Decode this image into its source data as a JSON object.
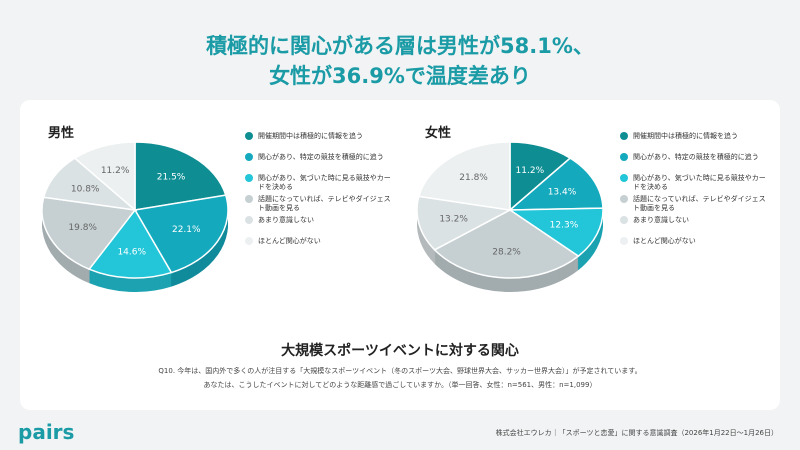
{
  "title_lines": [
    "積極的に関心がある層は男性が58.1%、",
    "女性が36.9%で温度差あり"
  ],
  "chart_data": [
    {
      "type": "pie",
      "title": "男性",
      "categories": [
        "開催期間中は積極的に情報を追う",
        "関心があり、特定の競技を積極的に追う",
        "関心があり、気づいた時に見る競技やカードを決める",
        "話題になっていれば、テレビやダイジェスト動画を見る",
        "あまり意識しない",
        "ほとんど関心がない"
      ],
      "values": [
        21.5,
        22.1,
        14.6,
        19.8,
        10.8,
        11.2
      ],
      "value_labels": [
        "21.5%",
        "22.1%",
        "14.6%",
        "19.8%",
        "10.8%",
        "11.2%"
      ],
      "colors": [
        "#0e8e93",
        "#14a9bd",
        "#22c6d8",
        "#c6d0d3",
        "#dbe2e4",
        "#ecf0f1"
      ]
    },
    {
      "type": "pie",
      "title": "女性",
      "categories": [
        "開催期間中は積極的に情報を追う",
        "関心があり、特定の競技を積極的に追う",
        "関心があり、気づいた時に見る競技やカードを決める",
        "話題になっていれば、テレビやダイジェスト動画を見る",
        "あまり意識しない",
        "ほとんど関心がない"
      ],
      "values": [
        11.2,
        13.4,
        12.3,
        28.2,
        13.2,
        21.8
      ],
      "value_labels": [
        "11.2%",
        "13.4%",
        "12.3%",
        "28.2%",
        "13.2%",
        "21.8%"
      ],
      "colors": [
        "#0e8e93",
        "#14a9bd",
        "#22c6d8",
        "#c6d0d3",
        "#dbe2e4",
        "#ecf0f1"
      ]
    }
  ],
  "subtitle": "大規模スポーツイベントに対する関心",
  "question_lines": [
    "Q10. 今年は、国内外で多くの人が注目する「大規模なスポーツイベント（冬のスポーツ大会、野球世界大会、サッカー世界大会）」が予定されています。",
    "あなたは、こうしたイベントに対してどのような距離感で過ごしていますか。（単一回答、女性：n=561、男性：n=1,099）"
  ],
  "logo": "pairs",
  "source": "株式会社エウレカ｜「スポーツと恋愛」に関する意識調査（2026年1月22日〜1月26日）"
}
